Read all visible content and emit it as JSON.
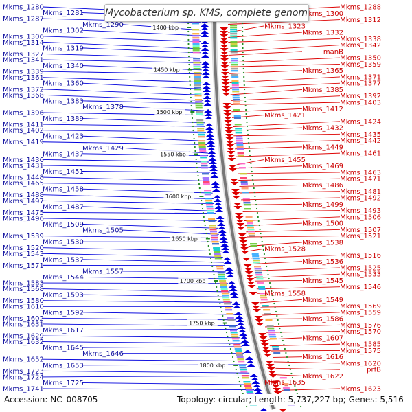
{
  "title": "Mycobacterium sp. KMS, complete genome",
  "footer": {
    "accession_label": "Accession:",
    "accession": "NC_008705",
    "topology_label": "Topology:",
    "topology": "circular",
    "length_label": "Length:",
    "length": "5,737,227 bp",
    "genes_label": "Genes:",
    "genes": "5,516"
  },
  "colors": {
    "forward": "#0000dd",
    "reverse": "#dd0000",
    "ticks": "#228b22"
  },
  "scale_ticks": [
    "1400 kbp",
    "1450 kbp",
    "1500 kbp",
    "1550 kbp",
    "1600 kbp",
    "1650 kbp",
    "1700 kbp",
    "1750 kbp",
    "1800 kbp"
  ],
  "forward_labels": [
    "Mkms_1280",
    "Mkms_1281",
    "Mkms_1287",
    "Mkms_1290",
    "Mkms_1302",
    "Mkms_1306",
    "Mkms_1314",
    "Mkms_1319",
    "Mkms_1327",
    "Mkms_1341",
    "Mkms_1340",
    "Mkms_1339",
    "Mkms_1361",
    "Mkms_1360",
    "Mkms_1372",
    "Mkms_1368",
    "Mkms_1383",
    "Mkms_1378",
    "Mkms_1396",
    "Mkms_1389",
    "Mkms_1411",
    "Mkms_1402",
    "Mkms_1423",
    "Mkms_1419",
    "Mkms_1429",
    "Mkms_1437",
    "Mkms_1436",
    "Mkms_1431",
    "Mkms_1451",
    "Mkms_1448",
    "Mkms_1465",
    "Mkms_1458",
    "Mkms_1488",
    "Mkms_1497",
    "Mkms_1487",
    "Mkms_1475",
    "Mkms_1496",
    "Mkms_1509",
    "Mkms_1505",
    "Mkms_1539",
    "Mkms_1530",
    "Mkms_1520",
    "Mkms_1543",
    "Mkms_1537",
    "Mkms_1571",
    "Mkms_1557",
    "Mkms_1544",
    "Mkms_1583",
    "Mkms_1568",
    "Mkms_1593",
    "Mkms_1580",
    "Mkms_1610",
    "Mkms_1592",
    "Mkms_1602",
    "Mkms_1631",
    "Mkms_1617",
    "Mkms_1629",
    "Mkms_1632",
    "Mkms_1645",
    "Mkms_1646",
    "Mkms_1652",
    "Mkms_1653",
    "Mkms_1723",
    "Mkms_1724",
    "Mkms_1725",
    "Mkms_1741"
  ],
  "reverse_labels": [
    "Mkms_1288",
    "Mkms_1300",
    "Mkms_1312",
    "Mkms_1323",
    "Mkms_1332",
    "Mkms_1338",
    "Mkms_1342",
    "manB",
    "Mkms_1350",
    "Mkms_1359",
    "Mkms_1365",
    "Mkms_1371",
    "Mkms_1377",
    "Mkms_1385",
    "Mkms_1392",
    "Mkms_1403",
    "Mkms_1412",
    "Mkms_1421",
    "Mkms_1424",
    "Mkms_1432",
    "Mkms_1435",
    "Mkms_1442",
    "Mkms_1449",
    "Mkms_1461",
    "Mkms_1455",
    "Mkms_1469",
    "Mkms_1463",
    "Mkms_1471",
    "Mkms_1486",
    "Mkms_1481",
    "Mkms_1492",
    "Mkms_1499",
    "Mkms_1493",
    "Mkms_1506",
    "Mkms_1500",
    "Mkms_1507",
    "Mkms_1521",
    "Mkms_1538",
    "Mkms_1528",
    "Mkms_1516",
    "Mkms_1536",
    "Mkms_1525",
    "Mkms_1533",
    "Mkms_1545",
    "Mkms_1546",
    "Mkms_1558",
    "Mkms_1549",
    "Mkms_1569",
    "Mkms_1559",
    "Mkms_1586",
    "Mkms_1576",
    "Mkms_1570",
    "Mkms_1607",
    "Mkms_1585",
    "Mkms_1575",
    "Mkms_1616",
    "Mkms_1620",
    "prfB",
    "Mkms_1622",
    "Mkms_1635",
    "Mkms_1623"
  ]
}
